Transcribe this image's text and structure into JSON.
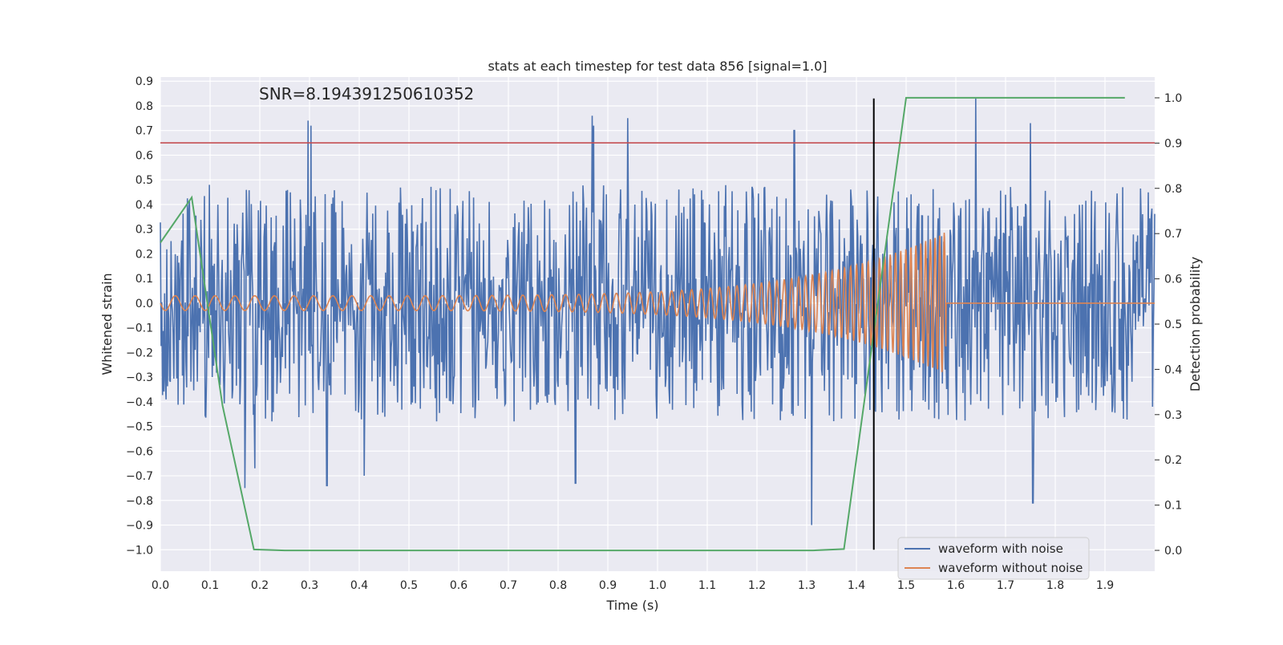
{
  "chart_data": {
    "type": "line",
    "title": "stats at each timestep for test data 856 [signal=1.0]",
    "annotation": "SNR=8.194391250610352",
    "xlabel": "Time (s)",
    "ylabel": "Whitened strain",
    "ylabel_right": "Detection probability",
    "xlim": [
      0.0,
      2.0
    ],
    "ylim": [
      -1.087,
      0.917
    ],
    "ylim_right": [
      -0.046,
      1.046
    ],
    "x_ticks": [
      "0.0",
      "0.1",
      "0.2",
      "0.3",
      "0.4",
      "0.5",
      "0.6",
      "0.7",
      "0.8",
      "0.9",
      "1.0",
      "1.1",
      "1.2",
      "1.3",
      "1.4",
      "1.5",
      "1.6",
      "1.7",
      "1.8",
      "1.9"
    ],
    "y_ticks": [
      "0.9",
      "0.8",
      "0.7",
      "0.6",
      "0.5",
      "0.4",
      "0.3",
      "0.2",
      "0.1",
      "0.0",
      "−0.1",
      "−0.2",
      "−0.3",
      "−0.4",
      "−0.5",
      "−0.6",
      "−0.7",
      "−0.8",
      "−0.9",
      "−1.0"
    ],
    "y_ticks_right": [
      "1.0",
      "0.9",
      "0.8",
      "0.7",
      "0.6",
      "0.5",
      "0.4",
      "0.3",
      "0.2",
      "0.1",
      "0.0"
    ],
    "grid": true,
    "legend_position": "lower-right",
    "noisy_waveform": {
      "name": "waveform with noise",
      "color": "#4c72b0",
      "x_range": [
        0.0,
        2.0
      ],
      "amplitude_envelope": 0.48,
      "peaks": [
        {
          "x": 0.297,
          "y": 0.74
        },
        {
          "x": 0.303,
          "y": 0.72
        },
        {
          "x": 0.868,
          "y": 0.76
        },
        {
          "x": 0.872,
          "y": 0.72
        },
        {
          "x": 0.94,
          "y": 0.75
        },
        {
          "x": 1.275,
          "y": 0.7
        },
        {
          "x": 1.64,
          "y": 0.83
        },
        {
          "x": 1.75,
          "y": 0.73
        },
        {
          "x": 1.31,
          "y": -1.0
        },
        {
          "x": 1.755,
          "y": -0.81
        },
        {
          "x": 0.17,
          "y": -0.75
        },
        {
          "x": 0.19,
          "y": -0.67
        },
        {
          "x": 0.335,
          "y": -0.74
        },
        {
          "x": 0.41,
          "y": -0.7
        },
        {
          "x": 0.835,
          "y": -0.73
        },
        {
          "x": 1.31,
          "y": -0.9
        }
      ]
    },
    "clean_waveform": {
      "name": "waveform without noise",
      "color": "#dd8452",
      "chirp": {
        "t_start": 0.0,
        "t_merge": 1.58,
        "f_start": 25,
        "f_end": 110,
        "amp_start": 0.03,
        "amp_end": 0.29
      },
      "after_merge_value": 0.0
    },
    "threshold": {
      "value": 0.65,
      "color": "#c44e52"
    },
    "marker_line": {
      "x": 1.435,
      "y_top": 0.83,
      "y_bottom": -1.0,
      "color": "#000000"
    },
    "detection_probability": {
      "color": "#55a868",
      "x": [
        0.0,
        0.063,
        0.125,
        0.188,
        0.25,
        1.313,
        1.375,
        1.5,
        1.94
      ],
      "y": [
        0.68,
        0.78,
        0.32,
        0.002,
        0.0,
        0.0,
        0.003,
        1.0,
        1.0
      ]
    }
  }
}
